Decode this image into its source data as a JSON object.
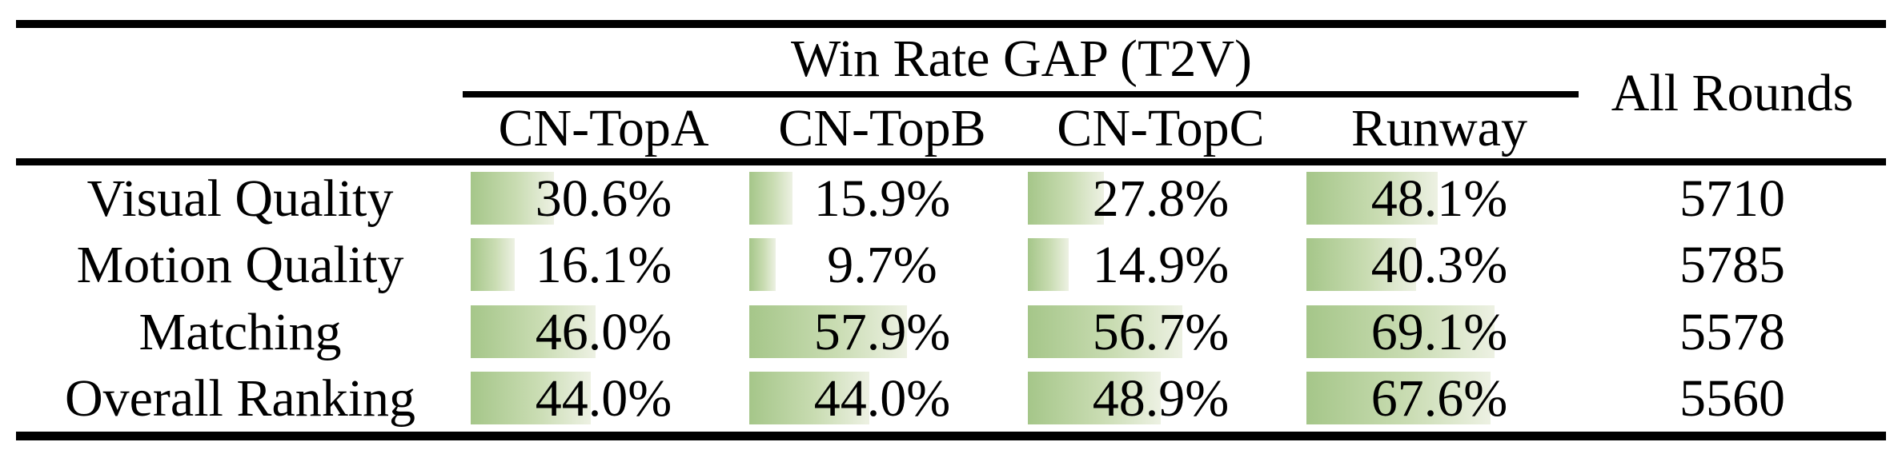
{
  "table": {
    "group_header": "Win Rate GAP (T2V)",
    "all_rounds_header": "All Rounds",
    "model_columns": [
      "CN-TopA",
      "CN-TopB",
      "CN-TopC",
      "Runway"
    ],
    "rows": [
      {
        "label": "Visual Quality",
        "values": [
          {
            "text": "30.6%",
            "pct": 30.6
          },
          {
            "text": "15.9%",
            "pct": 15.9
          },
          {
            "text": "27.8%",
            "pct": 27.8
          },
          {
            "text": "48.1%",
            "pct": 48.1
          }
        ],
        "all_rounds": "5710"
      },
      {
        "label": "Motion Quality",
        "values": [
          {
            "text": "16.1%",
            "pct": 16.1
          },
          {
            "text": "9.7%",
            "pct": 9.7
          },
          {
            "text": "14.9%",
            "pct": 14.9
          },
          {
            "text": "40.3%",
            "pct": 40.3
          }
        ],
        "all_rounds": "5785"
      },
      {
        "label": "Matching",
        "values": [
          {
            "text": "46.0%",
            "pct": 46.0
          },
          {
            "text": "57.9%",
            "pct": 57.9
          },
          {
            "text": "56.7%",
            "pct": 56.7
          },
          {
            "text": "69.1%",
            "pct": 69.1
          }
        ],
        "all_rounds": "5578"
      },
      {
        "label": "Overall Ranking",
        "values": [
          {
            "text": "44.0%",
            "pct": 44.0
          },
          {
            "text": "44.0%",
            "pct": 44.0
          },
          {
            "text": "48.9%",
            "pct": 48.9
          },
          {
            "text": "67.6%",
            "pct": 67.6
          }
        ],
        "all_rounds": "5560"
      }
    ],
    "colors": {
      "bar_gradient_start": "#a5c689",
      "bar_gradient_end": "#edf1e3",
      "rule": "#000000",
      "background": "#ffffff",
      "text": "#000000"
    }
  }
}
